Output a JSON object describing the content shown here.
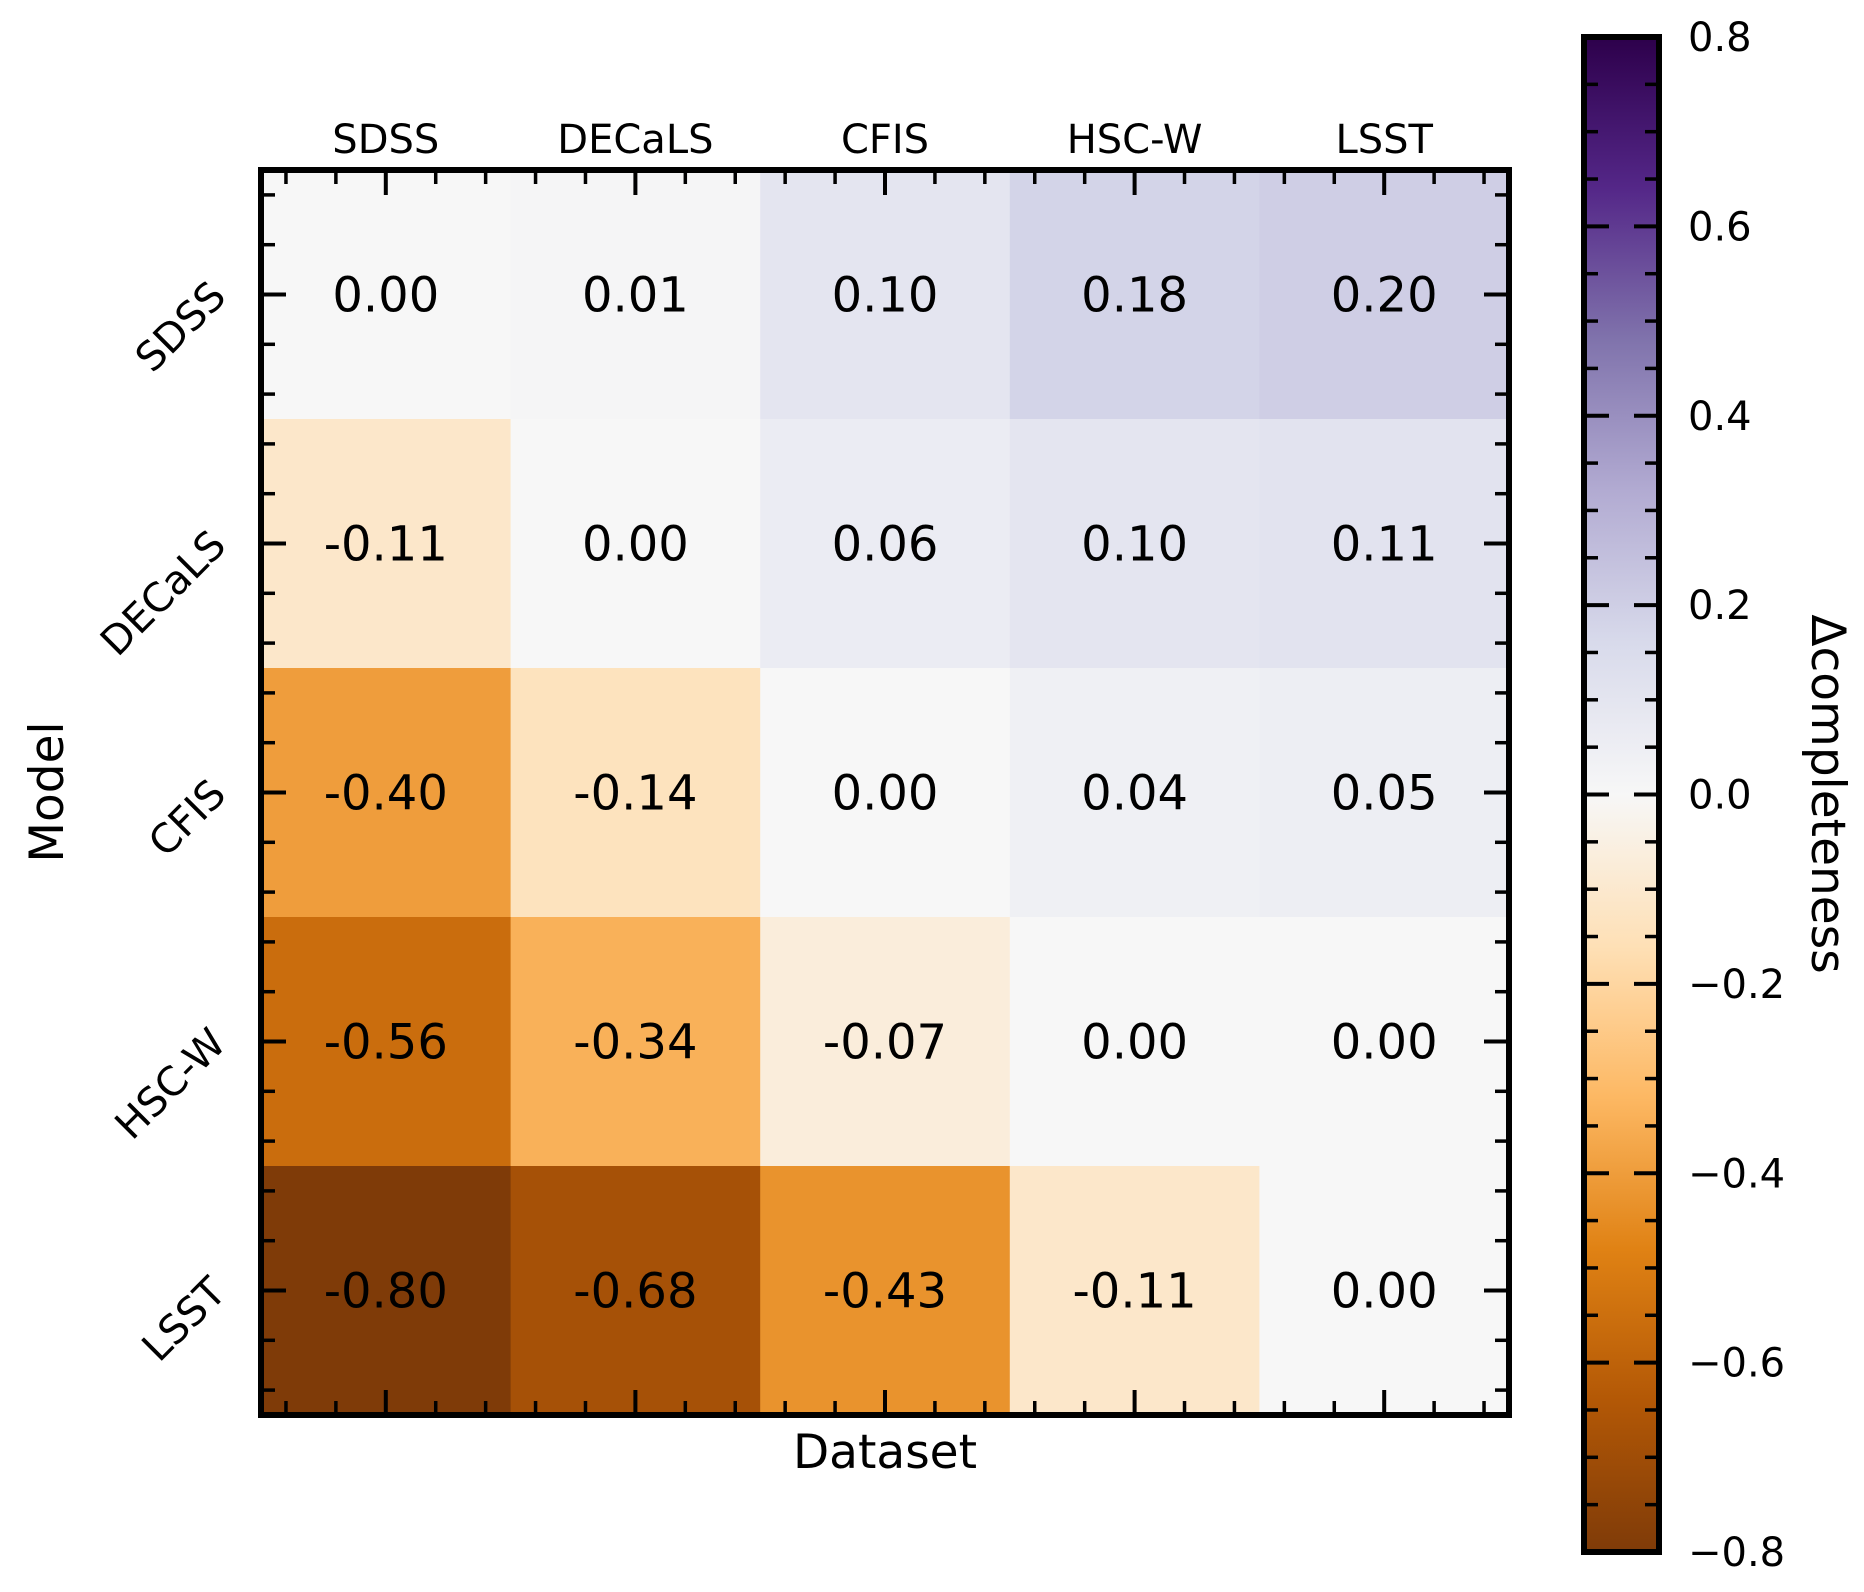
{
  "chart_data": {
    "type": "heatmap",
    "title": "",
    "xlabel": "Dataset",
    "ylabel": "Model",
    "x_categories": [
      "SDSS",
      "DECaLS",
      "CFIS",
      "HSC-W",
      "LSST"
    ],
    "y_categories": [
      "SDSS",
      "DECaLS",
      "CFIS",
      "HSC-W",
      "LSST"
    ],
    "values": [
      [
        0.0,
        0.01,
        0.1,
        0.18,
        0.2
      ],
      [
        -0.11,
        0.0,
        0.06,
        0.1,
        0.11
      ],
      [
        -0.4,
        -0.14,
        0.0,
        0.04,
        0.05
      ],
      [
        -0.56,
        -0.34,
        -0.07,
        0.0,
        0.0
      ],
      [
        -0.8,
        -0.68,
        -0.43,
        -0.11,
        0.0
      ]
    ],
    "cell_labels": [
      [
        "0.00",
        "0.01",
        "0.10",
        "0.18",
        "0.20"
      ],
      [
        "-0.11",
        "0.00",
        "0.06",
        "0.10",
        "0.11"
      ],
      [
        "-0.40",
        "-0.14",
        "0.00",
        "0.04",
        "0.05"
      ],
      [
        "-0.56",
        "-0.34",
        "-0.07",
        "0.00",
        "0.00"
      ],
      [
        "-0.80",
        "-0.68",
        "-0.43",
        "-0.11",
        "0.00"
      ]
    ],
    "colorbar": {
      "label": "Δcompleteness",
      "range": [
        -0.8,
        0.8
      ],
      "ticks": [
        0.8,
        0.6,
        0.4,
        0.2,
        0.0,
        -0.2,
        -0.4,
        -0.6,
        -0.8
      ],
      "tick_labels": [
        "0.8",
        "0.6",
        "0.4",
        "0.2",
        "0.0",
        "−0.2",
        "−0.4",
        "−0.6",
        "−0.8"
      ],
      "colormap": "PuOr",
      "colors": [
        "#7f3b08",
        "#b35806",
        "#e08214",
        "#fdb863",
        "#fee0b6",
        "#f7f7f7",
        "#d8daeb",
        "#b2abd2",
        "#8073ac",
        "#542788",
        "#2d004b"
      ]
    },
    "grid": false,
    "x_tick_position": "top"
  }
}
